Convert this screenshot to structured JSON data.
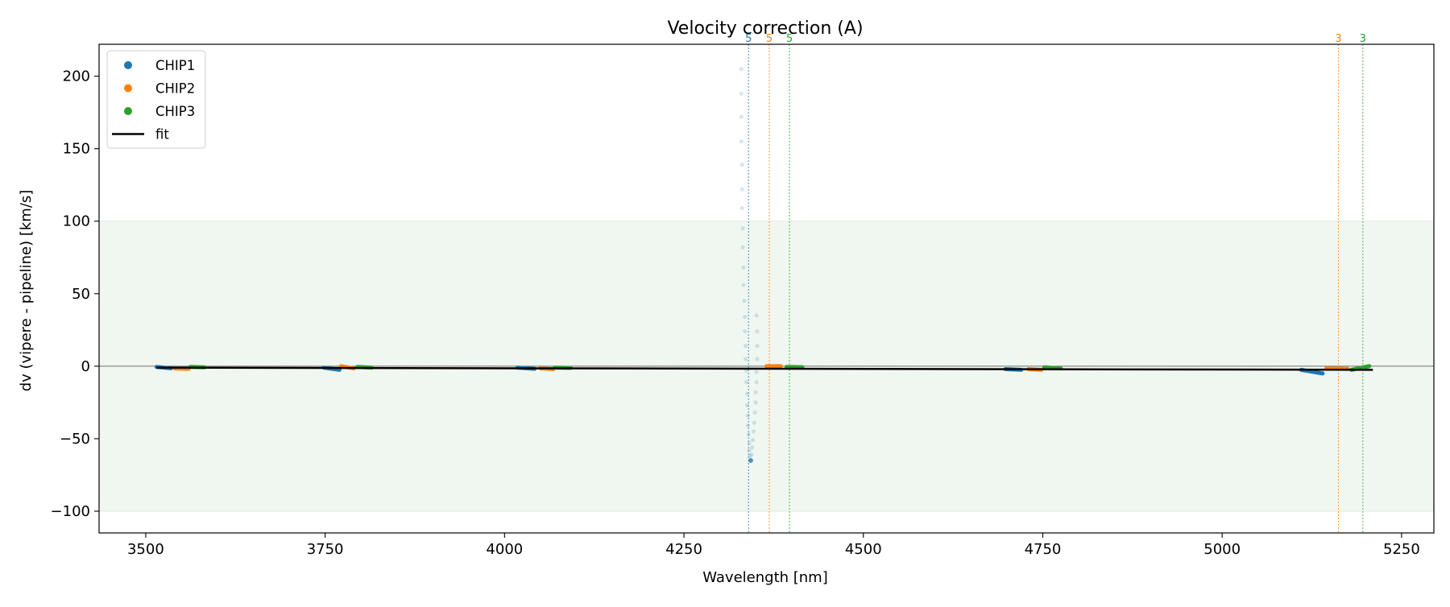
{
  "chart_data": {
    "type": "scatter",
    "title": "Velocity correction (A)",
    "xlabel": "Wavelength [nm]",
    "ylabel": "dv (vipere - pipeline) [km/s]",
    "xlim": [
      3435,
      5295
    ],
    "ylim": [
      -115,
      222
    ],
    "xticks": [
      3500,
      3750,
      4000,
      4250,
      4500,
      4750,
      5000,
      5250
    ],
    "xtick_labels": [
      "3500",
      "3750",
      "4000",
      "4250",
      "4500",
      "4750",
      "5000",
      "5250"
    ],
    "yticks": [
      -100,
      -50,
      0,
      50,
      100,
      150,
      200
    ],
    "ytick_labels": [
      "−100",
      "−50",
      "0",
      "50",
      "100",
      "150",
      "200"
    ],
    "accepted_band": [
      -100,
      100
    ],
    "zero_line": 0,
    "legend": {
      "location": "top-left",
      "entries": [
        {
          "label": "CHIP1",
          "kind": "marker",
          "color": "#1f77b4"
        },
        {
          "label": "CHIP2",
          "kind": "marker",
          "color": "#ff7f0e"
        },
        {
          "label": "CHIP3",
          "kind": "marker",
          "color": "#2ca02c"
        },
        {
          "label": "fit",
          "kind": "line",
          "color": "#000000"
        }
      ]
    },
    "colors": {
      "CHIP1": "#1f77b4",
      "CHIP2": "#ff7f0e",
      "CHIP3": "#2ca02c",
      "fit": "#000000",
      "band": "#f0f7f0"
    },
    "fit": {
      "x": [
        3515,
        5210
      ],
      "y": [
        -1.0,
        -2.5
      ]
    },
    "series": [
      {
        "name": "CHIP1",
        "color": "#1f77b4",
        "segments": [
          {
            "x0": 3515,
            "x1": 3535,
            "y0": -0.5,
            "y1": -1.5
          },
          {
            "x0": 3748,
            "x1": 3770,
            "y0": -1.0,
            "y1": -2.5
          },
          {
            "x0": 4018,
            "x1": 4042,
            "y0": -1.0,
            "y1": -1.8
          },
          {
            "x0": 4698,
            "x1": 4720,
            "y0": -2.0,
            "y1": -2.5
          },
          {
            "x0": 5110,
            "x1": 5140,
            "y0": -2.5,
            "y1": -5.0
          }
        ]
      },
      {
        "name": "CHIP2",
        "color": "#ff7f0e",
        "segments": [
          {
            "x0": 3540,
            "x1": 3560,
            "y0": -1.5,
            "y1": -1.8
          },
          {
            "x0": 3772,
            "x1": 3790,
            "y0": 0.0,
            "y1": -1.5
          },
          {
            "x0": 4050,
            "x1": 4068,
            "y0": -1.5,
            "y1": -2.0
          },
          {
            "x0": 4365,
            "x1": 4385,
            "y0": 0.0,
            "y1": 0.0
          },
          {
            "x0": 4730,
            "x1": 4748,
            "y0": -2.0,
            "y1": -2.5
          },
          {
            "x0": 5145,
            "x1": 5175,
            "y0": -1.5,
            "y1": -1.8
          }
        ]
      },
      {
        "name": "CHIP3",
        "color": "#2ca02c",
        "segments": [
          {
            "x0": 3562,
            "x1": 3582,
            "y0": -0.5,
            "y1": -0.8
          },
          {
            "x0": 3795,
            "x1": 3815,
            "y0": -0.5,
            "y1": -1.0
          },
          {
            "x0": 4070,
            "x1": 4092,
            "y0": -1.0,
            "y1": -1.2
          },
          {
            "x0": 4393,
            "x1": 4415,
            "y0": -0.5,
            "y1": -0.7
          },
          {
            "x0": 4752,
            "x1": 4775,
            "y0": -0.8,
            "y1": -1.5
          },
          {
            "x0": 5180,
            "x1": 5205,
            "y0": -2.5,
            "y1": 0.0
          }
        ]
      }
    ],
    "outliers": {
      "color": "#1f77b4",
      "points": [
        [
          4330,
          205
        ],
        [
          4330,
          188
        ],
        [
          4330,
          172
        ],
        [
          4330,
          155
        ],
        [
          4331,
          139
        ],
        [
          4331,
          122
        ],
        [
          4331,
          109
        ],
        [
          4332,
          95
        ],
        [
          4332,
          82
        ],
        [
          4333,
          68
        ],
        [
          4333,
          56
        ],
        [
          4334,
          45
        ],
        [
          4335,
          34
        ],
        [
          4335,
          24
        ],
        [
          4336,
          14
        ],
        [
          4336,
          5
        ],
        [
          4337,
          -3
        ],
        [
          4337,
          -11
        ],
        [
          4338,
          -19
        ],
        [
          4338,
          -27
        ],
        [
          4339,
          -34
        ],
        [
          4339,
          -41
        ],
        [
          4340,
          -47
        ],
        [
          4341,
          -53
        ],
        [
          4341,
          -58
        ],
        [
          4342,
          -62
        ],
        [
          4343,
          -65
        ],
        [
          4351,
          35
        ],
        [
          4352,
          24
        ],
        [
          4352,
          14
        ],
        [
          4352,
          5
        ],
        [
          4351,
          -4
        ],
        [
          4351,
          -11
        ],
        [
          4350,
          -18
        ],
        [
          4350,
          -25
        ],
        [
          4349,
          -32
        ],
        [
          4348,
          -39
        ],
        [
          4347,
          -45
        ],
        [
          4346,
          -51
        ],
        [
          4345,
          -56
        ],
        [
          4344,
          -61
        ]
      ]
    },
    "annotations": [
      {
        "x": 4340,
        "label": "5",
        "color": "#1f77b4"
      },
      {
        "x": 4369,
        "label": "5",
        "color": "#ff7f0e"
      },
      {
        "x": 4397,
        "label": "5",
        "color": "#2ca02c"
      },
      {
        "x": 5162,
        "label": "3",
        "color": "#ff7f0e"
      },
      {
        "x": 5196,
        "label": "3",
        "color": "#2ca02c"
      }
    ]
  }
}
